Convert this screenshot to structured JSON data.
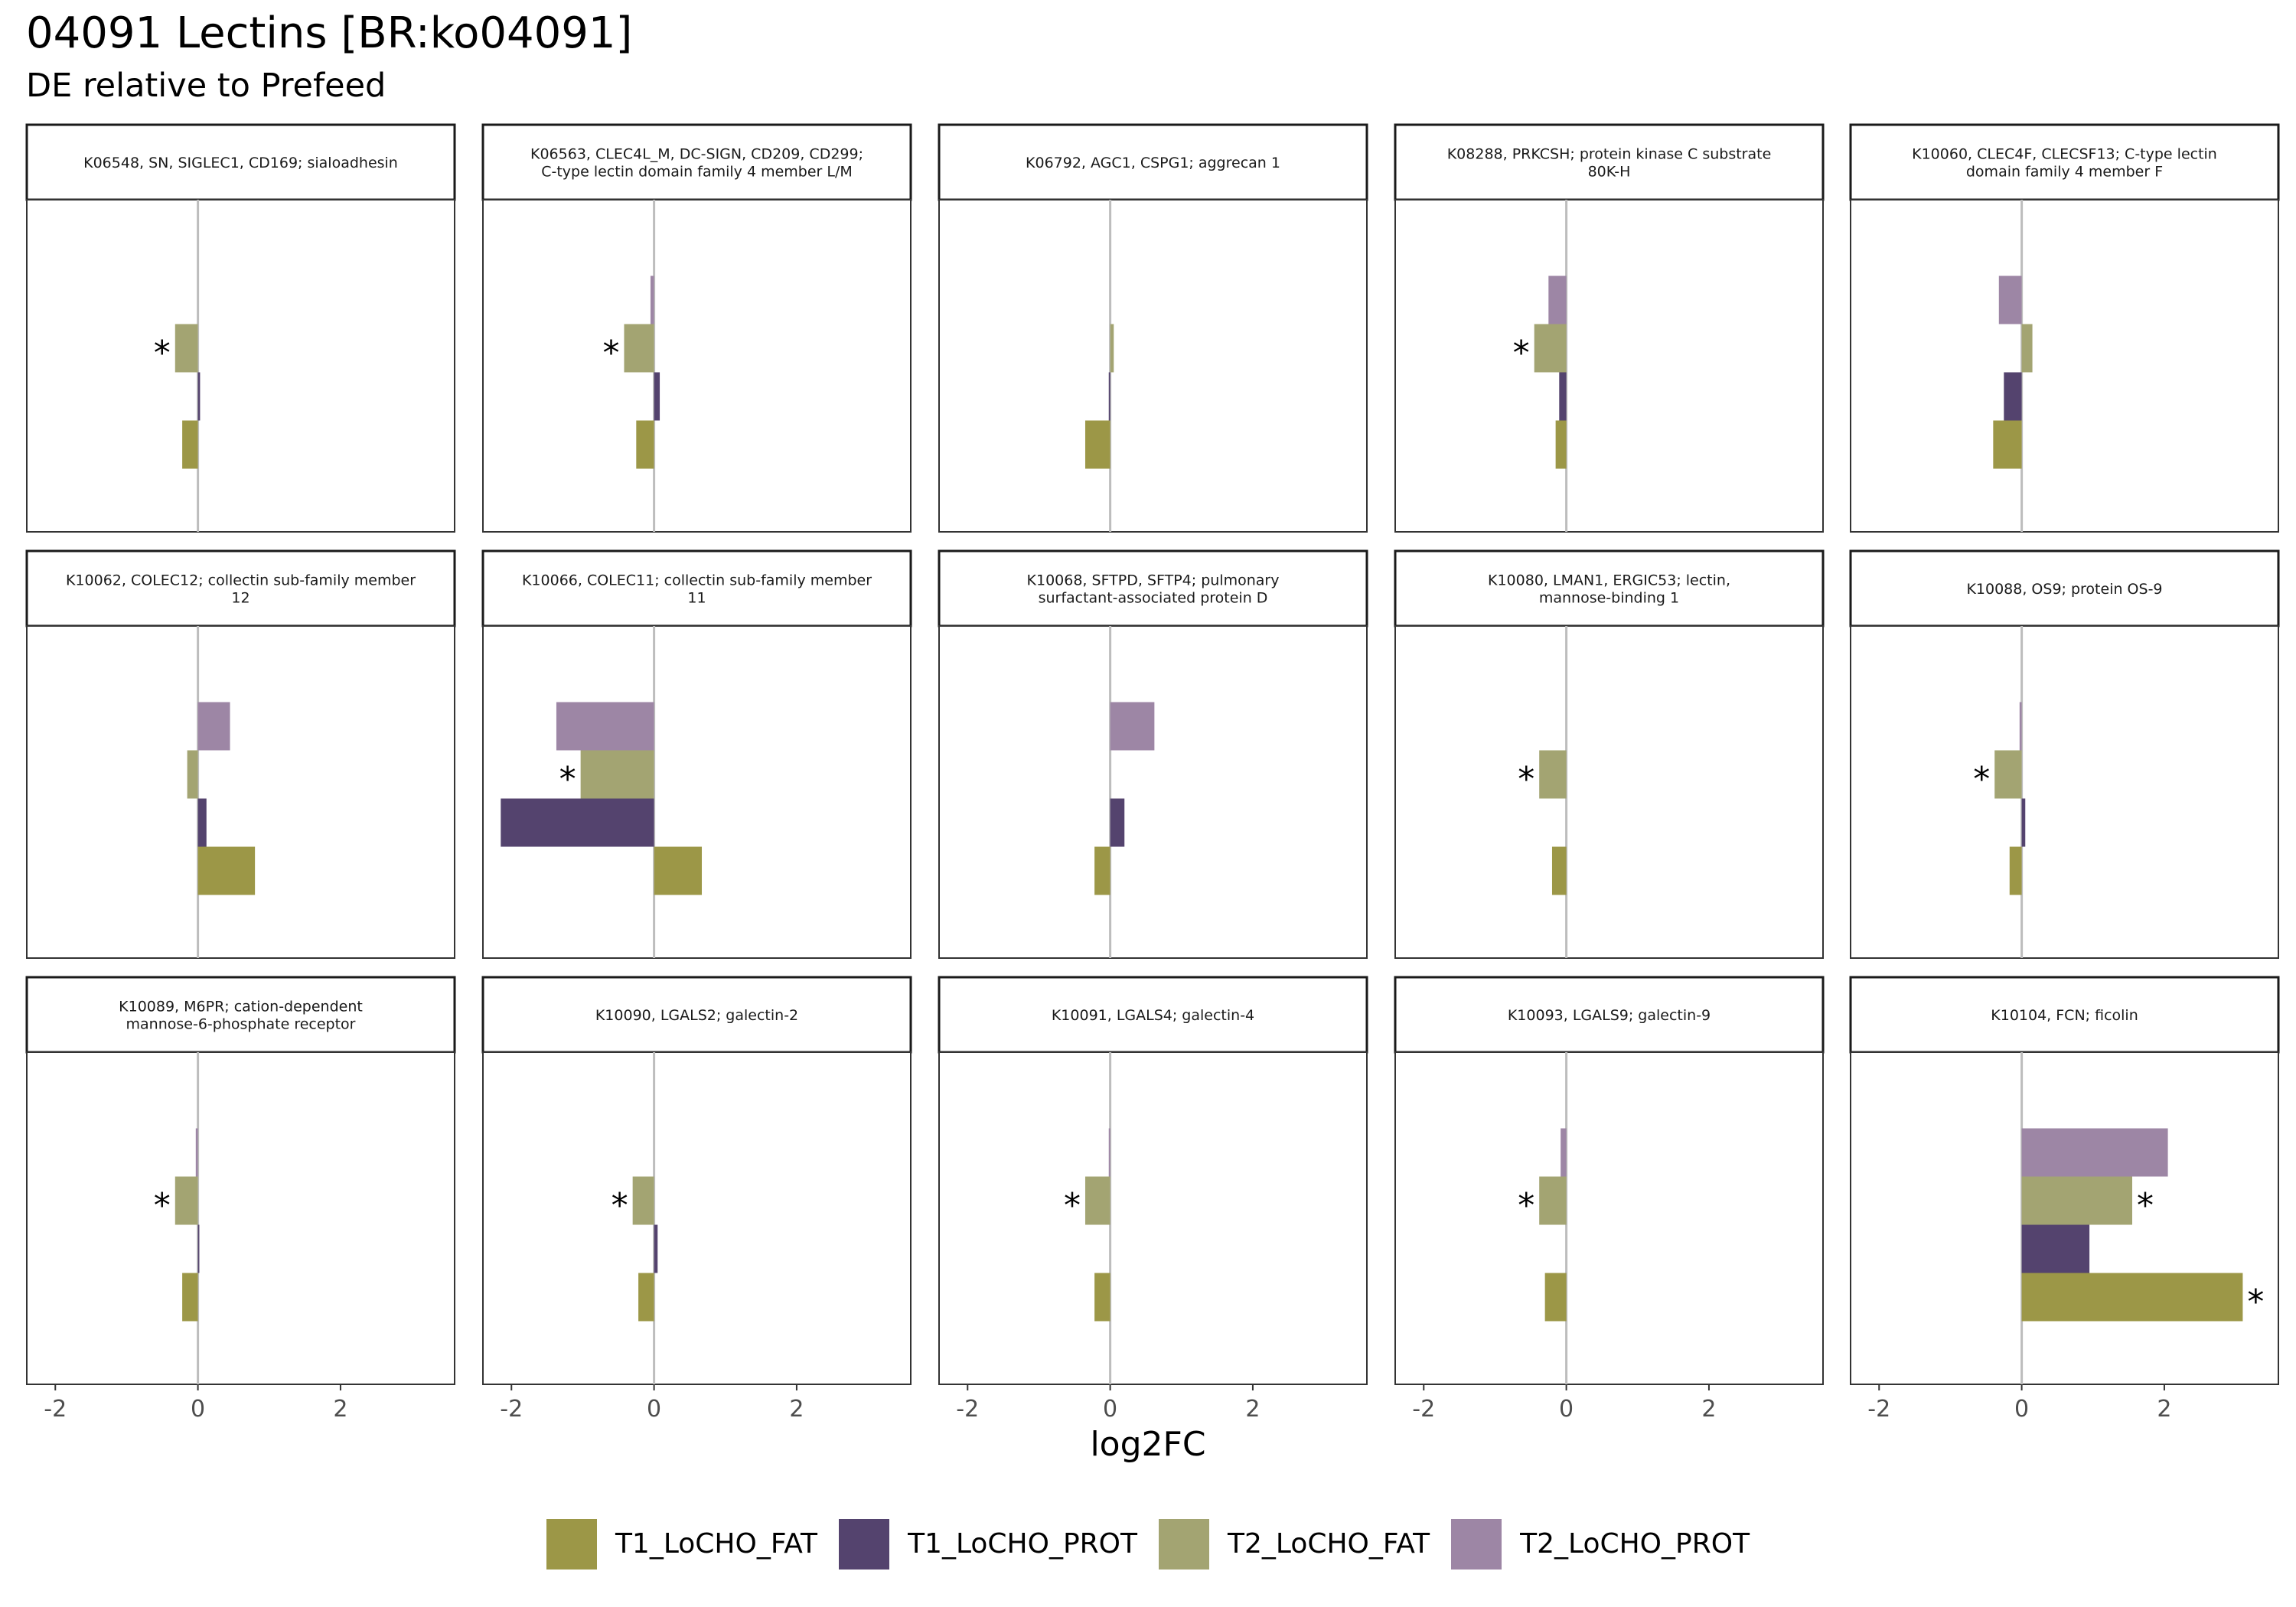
{
  "title": "04091 Lectins [BR:ko04091]",
  "subtitle": "DE relative to Prefeed",
  "chart_data": {
    "type": "bar",
    "orientation": "horizontal",
    "facet_layout": "3 rows x 5 columns",
    "xlabel": "log2FC",
    "ylabel": "",
    "xlim": [
      -2.4,
      3.6
    ],
    "xticks": [
      -2,
      0,
      2
    ],
    "xtick_labels": [
      "-2",
      "0",
      "2"
    ],
    "grid": false,
    "legend_position": "bottom",
    "significance_marker": "*",
    "series": [
      {
        "name": "T1_LoCHO_FAT",
        "color": "#9c9747"
      },
      {
        "name": "T1_LoCHO_PROT",
        "color": "#54436e"
      },
      {
        "name": "T2_LoCHO_FAT",
        "color": "#a3a472"
      },
      {
        "name": "T2_LoCHO_PROT",
        "color": "#9d86a5"
      }
    ],
    "panels": [
      {
        "label": "K06548, SN, SIGLEC1, CD169; sialoadhesin",
        "values": {
          "T1_LoCHO_FAT": -0.22,
          "T1_LoCHO_PROT": 0.03,
          "T2_LoCHO_FAT": -0.32,
          "T2_LoCHO_PROT": 0.0
        },
        "significant": [
          "T2_LoCHO_FAT"
        ]
      },
      {
        "label": "K06563, CLEC4L_M, DC-SIGN, CD209, CD299; C-type lectin domain family 4 member L/M",
        "values": {
          "T1_LoCHO_FAT": -0.25,
          "T1_LoCHO_PROT": 0.08,
          "T2_LoCHO_FAT": -0.42,
          "T2_LoCHO_PROT": -0.05
        },
        "significant": [
          "T2_LoCHO_FAT"
        ]
      },
      {
        "label": "K06792, AGC1, CSPG1; aggrecan 1",
        "values": {
          "T1_LoCHO_FAT": -0.35,
          "T1_LoCHO_PROT": -0.02,
          "T2_LoCHO_FAT": 0.05,
          "T2_LoCHO_PROT": 0.0
        },
        "significant": []
      },
      {
        "label": "K08288, PRKCSH; protein kinase C substrate 80K-H",
        "values": {
          "T1_LoCHO_FAT": -0.15,
          "T1_LoCHO_PROT": -0.1,
          "T2_LoCHO_FAT": -0.45,
          "T2_LoCHO_PROT": -0.25
        },
        "significant": [
          "T2_LoCHO_FAT"
        ]
      },
      {
        "label": "K10060, CLEC4F, CLECSF13; C-type lectin domain family 4 member F",
        "values": {
          "T1_LoCHO_FAT": -0.4,
          "T1_LoCHO_PROT": -0.25,
          "T2_LoCHO_FAT": 0.15,
          "T2_LoCHO_PROT": -0.32
        },
        "significant": []
      },
      {
        "label": "K10062, COLEC12; collectin sub-family member 12",
        "values": {
          "T1_LoCHO_FAT": 0.8,
          "T1_LoCHO_PROT": 0.12,
          "T2_LoCHO_FAT": -0.15,
          "T2_LoCHO_PROT": 0.45
        },
        "significant": []
      },
      {
        "label": "K10066, COLEC11; collectin sub-family member 11",
        "values": {
          "T1_LoCHO_FAT": 0.67,
          "T1_LoCHO_PROT": -2.15,
          "T2_LoCHO_FAT": -1.03,
          "T2_LoCHO_PROT": -1.37
        },
        "significant": [
          "T2_LoCHO_FAT"
        ]
      },
      {
        "label": "K10068, SFTPD, SFTP4; pulmonary surfactant-associated protein D",
        "values": {
          "T1_LoCHO_FAT": -0.22,
          "T1_LoCHO_PROT": 0.2,
          "T2_LoCHO_FAT": 0.0,
          "T2_LoCHO_PROT": 0.62
        },
        "significant": []
      },
      {
        "label": "K10080, LMAN1, ERGIC53; lectin, mannose-binding 1",
        "values": {
          "T1_LoCHO_FAT": -0.2,
          "T1_LoCHO_PROT": 0.0,
          "T2_LoCHO_FAT": -0.38,
          "T2_LoCHO_PROT": 0.0
        },
        "significant": [
          "T2_LoCHO_FAT"
        ]
      },
      {
        "label": "K10088, OS9; protein OS-9",
        "values": {
          "T1_LoCHO_FAT": -0.17,
          "T1_LoCHO_PROT": 0.05,
          "T2_LoCHO_FAT": -0.38,
          "T2_LoCHO_PROT": -0.03
        },
        "significant": [
          "T2_LoCHO_FAT"
        ]
      },
      {
        "label": "K10089, M6PR; cation-dependent mannose-6-phosphate receptor",
        "values": {
          "T1_LoCHO_FAT": -0.22,
          "T1_LoCHO_PROT": 0.02,
          "T2_LoCHO_FAT": -0.32,
          "T2_LoCHO_PROT": -0.03
        },
        "significant": [
          "T2_LoCHO_FAT"
        ]
      },
      {
        "label": "K10090, LGALS2; galectin-2",
        "values": {
          "T1_LoCHO_FAT": -0.22,
          "T1_LoCHO_PROT": 0.05,
          "T2_LoCHO_FAT": -0.3,
          "T2_LoCHO_PROT": 0.0
        },
        "significant": [
          "T2_LoCHO_FAT"
        ]
      },
      {
        "label": "K10091, LGALS4; galectin-4",
        "values": {
          "T1_LoCHO_FAT": -0.22,
          "T1_LoCHO_PROT": 0.0,
          "T2_LoCHO_FAT": -0.35,
          "T2_LoCHO_PROT": -0.02
        },
        "significant": [
          "T2_LoCHO_FAT"
        ]
      },
      {
        "label": "K10093, LGALS9; galectin-9",
        "values": {
          "T1_LoCHO_FAT": -0.3,
          "T1_LoCHO_PROT": 0.0,
          "T2_LoCHO_FAT": -0.38,
          "T2_LoCHO_PROT": -0.08
        },
        "significant": [
          "T2_LoCHO_FAT"
        ]
      },
      {
        "label": "K10104, FCN; ficolin",
        "values": {
          "T1_LoCHO_FAT": 3.1,
          "T1_LoCHO_PROT": 0.95,
          "T2_LoCHO_FAT": 1.55,
          "T2_LoCHO_PROT": 2.05
        },
        "significant": [
          "T1_LoCHO_FAT",
          "T2_LoCHO_FAT"
        ]
      }
    ]
  }
}
